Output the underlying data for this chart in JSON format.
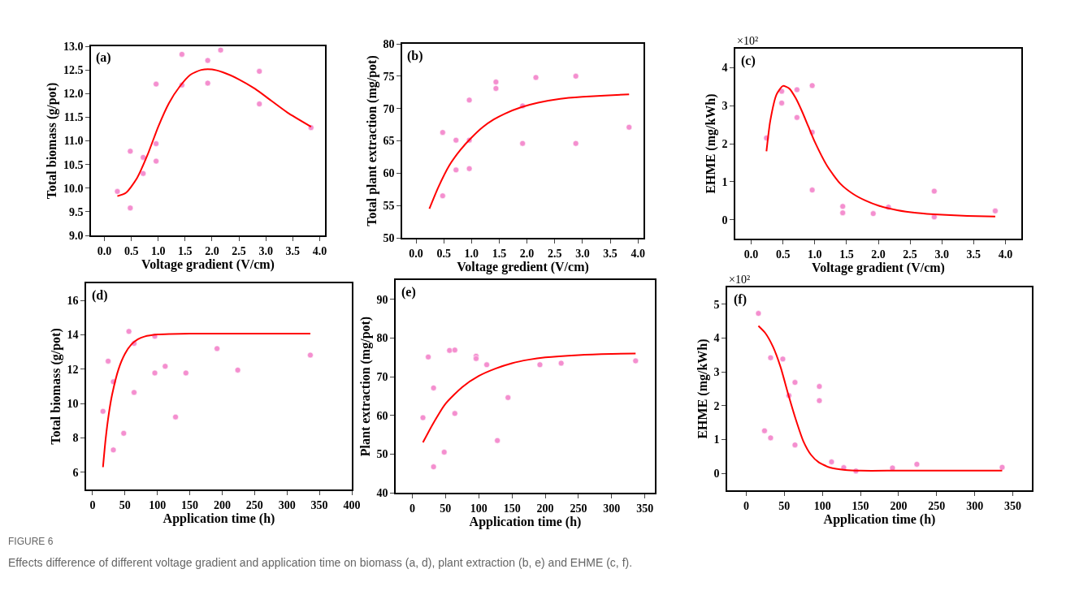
{
  "chart_data": [
    {
      "type": "scatter",
      "xlabel": "Voltage gradient (V/cm)",
      "ylabel": "Total biomass (g/pot)",
      "annotations": [
        "(a)"
      ],
      "xlim": [
        -0.25,
        4.1
      ],
      "xticks": [
        {
          "value": 0,
          "label": "0.0"
        },
        {
          "value": 0.5,
          "label": "0.5"
        },
        {
          "value": 1,
          "label": "1.0"
        },
        {
          "value": 1.5,
          "label": "1.5"
        },
        {
          "value": 2,
          "label": "2.0"
        },
        {
          "value": 2.5,
          "label": "2.5"
        },
        {
          "value": 3,
          "label": "3.0"
        },
        {
          "value": 3.5,
          "label": "3.5"
        },
        {
          "value": 4,
          "label": "4.0"
        }
      ],
      "ylim": [
        9,
        13
      ],
      "yticks": [
        {
          "value": 9,
          "label": "9.0"
        },
        {
          "value": 9.5,
          "label": "9.5"
        },
        {
          "value": 10,
          "label": "10.0"
        },
        {
          "value": 10.5,
          "label": "10.5"
        },
        {
          "value": 11,
          "label": "11.0"
        },
        {
          "value": 11.5,
          "label": "11.5"
        },
        {
          "value": 12,
          "label": "12.0"
        },
        {
          "value": 12.5,
          "label": "12.5"
        },
        {
          "value": 13,
          "label": "13.0"
        }
      ],
      "series": [
        {
          "marker": "circle",
          "color": "#f48fcf",
          "x": [
            0.24,
            0.48,
            0.48,
            0.72,
            0.72,
            0.96,
            0.96,
            0.96,
            1.44,
            1.44,
            1.92,
            1.92,
            2.16,
            2.88,
            2.88,
            3.84
          ],
          "values": [
            9.93,
            10.78,
            9.58,
            10.65,
            10.31,
            12.2,
            10.94,
            10.57,
            12.83,
            12.18,
            12.7,
            12.22,
            12.92,
            12.47,
            11.78,
            11.28
          ]
        },
        {
          "type": "line",
          "color": "#ff0000",
          "x": [
            0.24,
            0.4,
            0.6,
            0.8,
            1.0,
            1.2,
            1.4,
            1.6,
            1.8,
            2.0,
            2.2,
            2.5,
            2.8,
            3.1,
            3.4,
            3.84
          ],
          "values": [
            9.83,
            9.9,
            10.2,
            10.7,
            11.3,
            11.8,
            12.15,
            12.4,
            12.5,
            12.51,
            12.45,
            12.3,
            12.1,
            11.85,
            11.6,
            11.3
          ]
        }
      ]
    },
    {
      "type": "scatter",
      "xlabel": "Voltage gredient (V/cm)",
      "ylabel": "Total plant extraction (mg/pot)",
      "annotations": [
        "(b)"
      ],
      "xlim": [
        -0.25,
        4.1
      ],
      "xticks": [
        {
          "value": 0,
          "label": "0.0"
        },
        {
          "value": 0.5,
          "label": "0.5"
        },
        {
          "value": 1,
          "label": "1.0"
        },
        {
          "value": 1.5,
          "label": "1.5"
        },
        {
          "value": 2,
          "label": "2.0"
        },
        {
          "value": 2.5,
          "label": "2.5"
        },
        {
          "value": 3,
          "label": "3.0"
        },
        {
          "value": 3.5,
          "label": "3.5"
        },
        {
          "value": 4,
          "label": "4.0"
        }
      ],
      "ylim": [
        50,
        80
      ],
      "yticks": [
        50,
        55,
        60,
        65,
        70,
        75,
        80
      ],
      "series": [
        {
          "marker": "circle",
          "color": "#f48fcf",
          "x": [
            0.48,
            0.48,
            0.72,
            0.72,
            0.96,
            0.96,
            0.96,
            1.44,
            1.44,
            1.92,
            1.92,
            2.16,
            2.88,
            2.88,
            3.84
          ],
          "values": [
            66.3,
            56.5,
            65.1,
            60.5,
            71.3,
            65.1,
            60.7,
            74.1,
            73.1,
            70.4,
            64.6,
            74.8,
            75.0,
            64.6,
            67.1
          ]
        },
        {
          "type": "line",
          "color": "#ff0000",
          "x": [
            0.24,
            0.4,
            0.6,
            0.8,
            1.0,
            1.2,
            1.4,
            1.6,
            1.9,
            2.2,
            2.6,
            3.0,
            3.4,
            3.84
          ],
          "values": [
            54.5,
            57.8,
            61.2,
            63.6,
            65.5,
            67.1,
            68.3,
            69.2,
            70.2,
            70.9,
            71.5,
            71.8,
            72.0,
            72.2
          ]
        }
      ]
    },
    {
      "type": "scatter",
      "xlabel": "Voltage gradient (V/cm)",
      "ylabel": "EHME (mg/kWh)",
      "annotations": [
        "(c)",
        "×10²"
      ],
      "xlim": [
        -0.25,
        4.25
      ],
      "xticks": [
        {
          "value": 0,
          "label": "0.0"
        },
        {
          "value": 0.5,
          "label": "0.5"
        },
        {
          "value": 1,
          "label": "1.0"
        },
        {
          "value": 1.5,
          "label": "1.5"
        },
        {
          "value": 2,
          "label": "2.0"
        },
        {
          "value": 2.5,
          "label": "2.5"
        },
        {
          "value": 3,
          "label": "3.0"
        },
        {
          "value": 3.5,
          "label": "3.5"
        },
        {
          "value": 4,
          "label": "4.0"
        }
      ],
      "ylim": [
        -0.5,
        4.5
      ],
      "yticks": [
        0,
        1,
        2,
        3,
        4
      ],
      "series": [
        {
          "marker": "circle",
          "color": "#f48fcf",
          "x": [
            0.24,
            0.48,
            0.48,
            0.72,
            0.72,
            0.96,
            0.96,
            0.96,
            1.44,
            1.44,
            1.92,
            2.16,
            2.88,
            2.88,
            3.84
          ],
          "values": [
            2.15,
            3.38,
            3.07,
            3.42,
            2.69,
            3.53,
            2.3,
            0.78,
            0.35,
            0.18,
            0.16,
            0.33,
            0.75,
            0.07,
            0.23
          ]
        },
        {
          "type": "line",
          "color": "#ff0000",
          "x": [
            0.24,
            0.3,
            0.4,
            0.5,
            0.6,
            0.7,
            0.8,
            0.9,
            1.0,
            1.2,
            1.4,
            1.6,
            1.8,
            2.0,
            2.3,
            2.6,
            3.0,
            3.4,
            3.84
          ],
          "values": [
            1.8,
            2.6,
            3.3,
            3.52,
            3.45,
            3.2,
            2.85,
            2.45,
            2.05,
            1.4,
            0.95,
            0.68,
            0.5,
            0.37,
            0.25,
            0.18,
            0.13,
            0.1,
            0.08
          ]
        }
      ]
    },
    {
      "type": "scatter",
      "xlabel": "Application time (h)",
      "ylabel": "Total biomass (g/pot)",
      "annotations": [
        "(d)"
      ],
      "xlim": [
        -10,
        400
      ],
      "xticks": [
        0,
        50,
        100,
        150,
        200,
        250,
        300,
        350,
        400
      ],
      "ylim": [
        5,
        17
      ],
      "yticks": [
        6,
        8,
        10,
        12,
        14,
        16
      ],
      "series": [
        {
          "marker": "circle",
          "color": "#f48fcf",
          "x": [
            16,
            24,
            32,
            32,
            48,
            56,
            64,
            64,
            96,
            96,
            112,
            128,
            144,
            192,
            224,
            336
          ],
          "values": [
            9.55,
            12.47,
            11.27,
            7.3,
            8.27,
            14.2,
            13.5,
            10.65,
            13.92,
            11.78,
            12.17,
            9.22,
            11.78,
            13.2,
            11.95,
            12.82
          ]
        },
        {
          "type": "line",
          "color": "#ff0000",
          "x": [
            16,
            20,
            25,
            30,
            40,
            50,
            60,
            70,
            80,
            100,
            120,
            150,
            200,
            336
          ],
          "values": [
            6.3,
            7.9,
            9.4,
            10.5,
            12.0,
            12.9,
            13.45,
            13.75,
            13.9,
            14.02,
            14.05,
            14.07,
            14.07,
            14.07
          ]
        }
      ]
    },
    {
      "type": "scatter",
      "xlabel": "Application time (h)",
      "ylabel": "Plant extraction (mg/pot)",
      "annotations": [
        "(e)"
      ],
      "xlim": [
        -25,
        365
      ],
      "xticks": [
        0,
        50,
        100,
        150,
        200,
        250,
        300,
        350
      ],
      "ylim": [
        40,
        95
      ],
      "yticks": [
        40,
        50,
        60,
        70,
        80,
        90
      ],
      "series": [
        {
          "marker": "circle",
          "color": "#f48fcf",
          "x": [
            16,
            24,
            32,
            32,
            48,
            56,
            64,
            64,
            96,
            96,
            112,
            128,
            144,
            192,
            224,
            336
          ],
          "values": [
            59.4,
            75.1,
            67.1,
            46.7,
            50.5,
            76.8,
            76.9,
            60.5,
            75.3,
            74.7,
            73.1,
            53.5,
            64.6,
            73.1,
            73.5,
            74.1
          ]
        },
        {
          "type": "line",
          "color": "#ff0000",
          "x": [
            16,
            30,
            50,
            75,
            100,
            125,
            150,
            175,
            200,
            250,
            300,
            336
          ],
          "values": [
            53,
            57.5,
            63,
            67.3,
            70.2,
            72.1,
            73.5,
            74.4,
            75.0,
            75.6,
            75.9,
            76.0
          ]
        }
      ]
    },
    {
      "type": "scatter",
      "xlabel": "Application time (h)",
      "ylabel": "EHME (mg/kWh)",
      "annotations": [
        "(f)",
        "×10²",
        "FIGURE 6",
        "Effects difference of different voltage gradient and application time on biomass (a, d), plant extraction (b, e) and EHME (c, f)."
      ],
      "xlim": [
        -25,
        375
      ],
      "xticks": [
        0,
        50,
        100,
        150,
        200,
        250,
        300,
        350
      ],
      "ylim": [
        -0.5,
        5.5
      ],
      "yticks": [
        0,
        1,
        2,
        3,
        4,
        5
      ],
      "series": [
        {
          "marker": "circle",
          "color": "#f48fcf",
          "x": [
            16,
            24,
            32,
            32,
            48,
            56,
            64,
            64,
            96,
            96,
            112,
            128,
            144,
            192,
            224,
            336
          ],
          "values": [
            4.73,
            1.26,
            3.42,
            1.05,
            3.38,
            2.3,
            2.69,
            0.84,
            2.57,
            2.15,
            0.34,
            0.17,
            0.07,
            0.16,
            0.27,
            0.18
          ]
        },
        {
          "type": "line",
          "color": "#ff0000",
          "x": [
            16,
            25,
            35,
            45,
            55,
            65,
            75,
            85,
            95,
            110,
            130,
            150,
            200,
            336
          ],
          "values": [
            4.36,
            4.15,
            3.75,
            3.15,
            2.35,
            1.6,
            0.95,
            0.55,
            0.33,
            0.17,
            0.1,
            0.08,
            0.08,
            0.08
          ]
        }
      ]
    }
  ]
}
